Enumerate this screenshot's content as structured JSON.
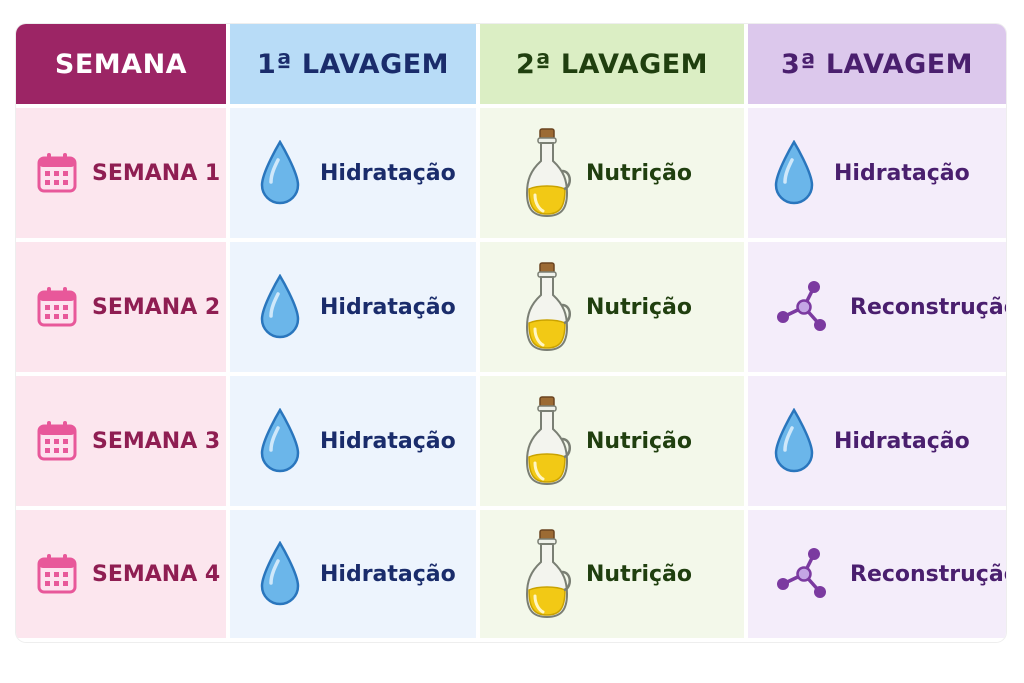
{
  "header": {
    "week": "SEMANA",
    "wash1": "1ª LAVAGEM",
    "wash2": "2ª LAVAGEM",
    "wash3": "3ª LAVAGEM"
  },
  "rows": [
    {
      "week": "SEMANA 1",
      "wash1": "Hidratação",
      "wash2": "Nutrição",
      "wash3": "Hidratação",
      "wash3_icon": "water-drop-icon"
    },
    {
      "week": "SEMANA 2",
      "wash1": "Hidratação",
      "wash2": "Nutrição",
      "wash3": "Reconstrução",
      "wash3_icon": "molecule-icon"
    },
    {
      "week": "SEMANA 3",
      "wash1": "Hidratação",
      "wash2": "Nutrição",
      "wash3": "Hidratação",
      "wash3_icon": "water-drop-icon"
    },
    {
      "week": "SEMANA 4",
      "wash1": "Hidratação",
      "wash2": "Nutrição",
      "wash3": "Reconstrução",
      "wash3_icon": "molecule-icon"
    }
  ],
  "icons": {
    "week": "calendar-icon",
    "wash1": "water-drop-icon",
    "wash2": "oil-bottle-icon"
  },
  "colors": {
    "week_header": "#9c2565",
    "wash1_header": "#b8dcf7",
    "wash2_header": "#dbeec4",
    "wash3_header": "#dcc8ec",
    "drop": "#6bb6ea",
    "oil": "#f2c915",
    "molecule": "#7b3aa0",
    "calendar": "#e8589a"
  }
}
